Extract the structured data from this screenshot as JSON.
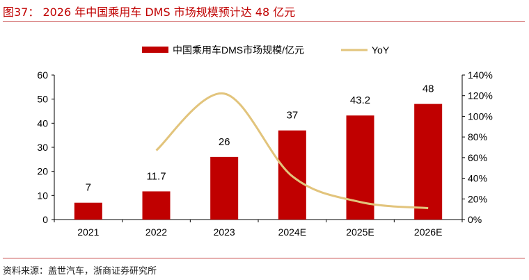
{
  "title": "图37： 2026 年中国乘用车 DMS 市场规模预计达 48 亿元",
  "source": "资料来源：盖世汽车，浙商证券研究所",
  "colors": {
    "bar": "#c00000",
    "line": "#e2c47c",
    "title": "#c00000"
  },
  "chart_data": {
    "type": "bar+line",
    "categories": [
      "2021",
      "2022",
      "2023",
      "2024E",
      "2025E",
      "2026E"
    ],
    "series": [
      {
        "name": "中国乘用车DMS市场规模/亿元",
        "type": "bar",
        "axis": "left",
        "values": [
          7,
          11.7,
          26,
          37,
          43.2,
          48
        ],
        "labels": [
          "7",
          "11.7",
          "26",
          "37",
          "43.2",
          "48"
        ]
      },
      {
        "name": "YoY",
        "type": "line",
        "axis": "right",
        "values": [
          null,
          0.67,
          1.22,
          0.42,
          0.17,
          0.11
        ]
      }
    ],
    "ylim_left": [
      0,
      60
    ],
    "yticks_left": [
      "0",
      "10",
      "20",
      "30",
      "40",
      "50",
      "60"
    ],
    "ylim_right": [
      0,
      1.4
    ],
    "yticks_right": [
      "0%",
      "20%",
      "40%",
      "60%",
      "80%",
      "100%",
      "120%",
      "140%"
    ],
    "legend": "top",
    "grid": false
  }
}
